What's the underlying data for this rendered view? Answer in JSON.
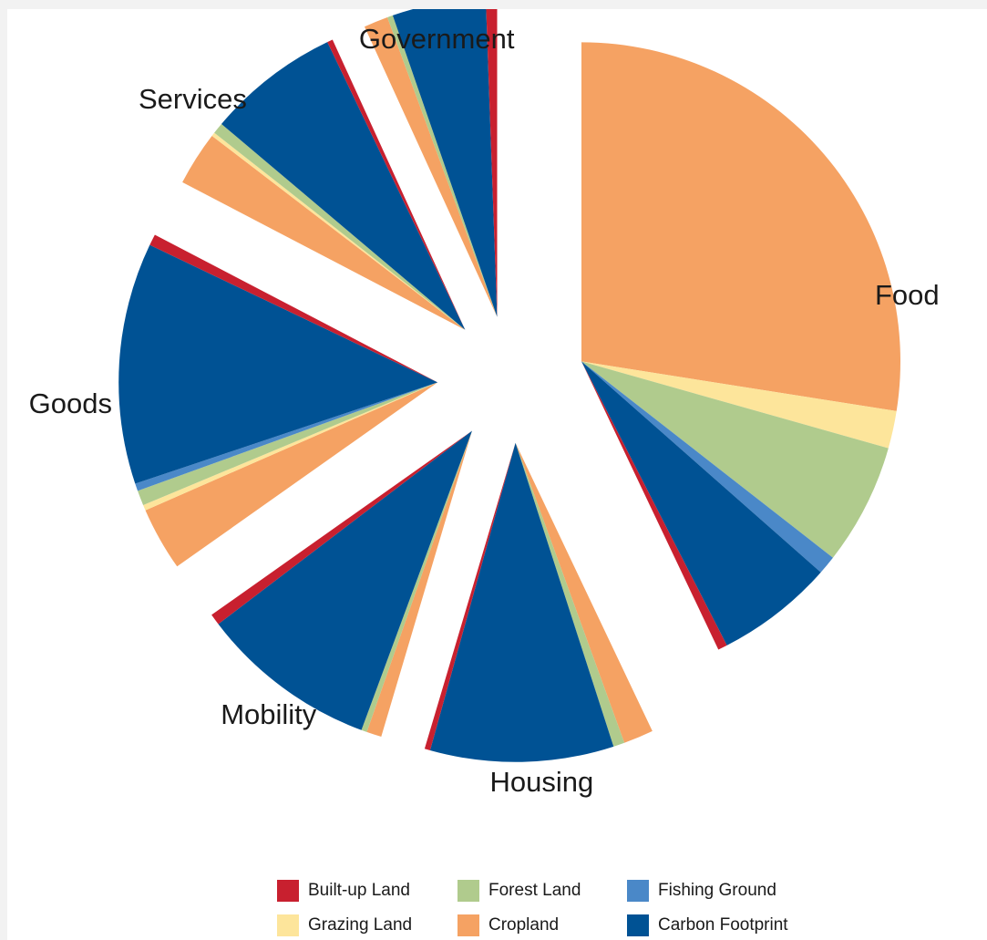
{
  "chart_data": {
    "type": "pie",
    "title": "",
    "categories": [
      "Built-up Land",
      "Forest Land",
      "Fishing Ground",
      "Grazing Land",
      "Cropland",
      "Carbon Footprint"
    ],
    "colors": {
      "Built-up Land": "#c8202f",
      "Forest Land": "#b0cb8d",
      "Fishing Ground": "#4a88c8",
      "Grazing Land": "#fde59b",
      "Cropland": "#f5a263",
      "Carbon Footprint": "#005294"
    },
    "groups": [
      {
        "name": "Food",
        "slices": [
          {
            "category": "Cropland",
            "value": 29.0
          },
          {
            "category": "Grazing Land",
            "value": 2.0
          },
          {
            "category": "Forest Land",
            "value": 6.5
          },
          {
            "category": "Fishing Ground",
            "value": 1.0
          },
          {
            "category": "Carbon Footprint",
            "value": 6.3
          },
          {
            "category": "Built-up Land",
            "value": 0.5
          }
        ]
      },
      {
        "name": "Housing",
        "slices": [
          {
            "category": "Cropland",
            "value": 1.6
          },
          {
            "category": "Forest Land",
            "value": 0.6
          },
          {
            "category": "Carbon Footprint",
            "value": 9.8
          },
          {
            "category": "Built-up Land",
            "value": 0.3
          }
        ]
      },
      {
        "name": "Mobility",
        "slices": [
          {
            "category": "Cropland",
            "value": 0.8
          },
          {
            "category": "Forest Land",
            "value": 0.3
          },
          {
            "category": "Carbon Footprint",
            "value": 9.5
          },
          {
            "category": "Built-up Land",
            "value": 0.6
          }
        ]
      },
      {
        "name": "Goods",
        "slices": [
          {
            "category": "Cropland",
            "value": 3.4
          },
          {
            "category": "Grazing Land",
            "value": 0.3
          },
          {
            "category": "Forest Land",
            "value": 0.8
          },
          {
            "category": "Fishing Ground",
            "value": 0.4
          },
          {
            "category": "Carbon Footprint",
            "value": 12.9
          },
          {
            "category": "Built-up Land",
            "value": 0.6
          }
        ]
      },
      {
        "name": "Services",
        "slices": [
          {
            "category": "Cropland",
            "value": 2.9
          },
          {
            "category": "Grazing Land",
            "value": 0.2
          },
          {
            "category": "Forest Land",
            "value": 0.6
          },
          {
            "category": "Carbon Footprint",
            "value": 7.1
          },
          {
            "category": "Built-up Land",
            "value": 0.3
          }
        ]
      },
      {
        "name": "Government",
        "slices": [
          {
            "category": "Cropland",
            "value": 1.3
          },
          {
            "category": "Forest Land",
            "value": 0.3
          },
          {
            "category": "Carbon Footprint",
            "value": 5.0
          },
          {
            "category": "Built-up Land",
            "value": 0.6
          }
        ]
      }
    ],
    "legend": {
      "placement": "bottom",
      "items": [
        "Built-up Land",
        "Forest Land",
        "Fishing Ground",
        "Grazing Land",
        "Cropland",
        "Carbon Footprint"
      ]
    }
  }
}
